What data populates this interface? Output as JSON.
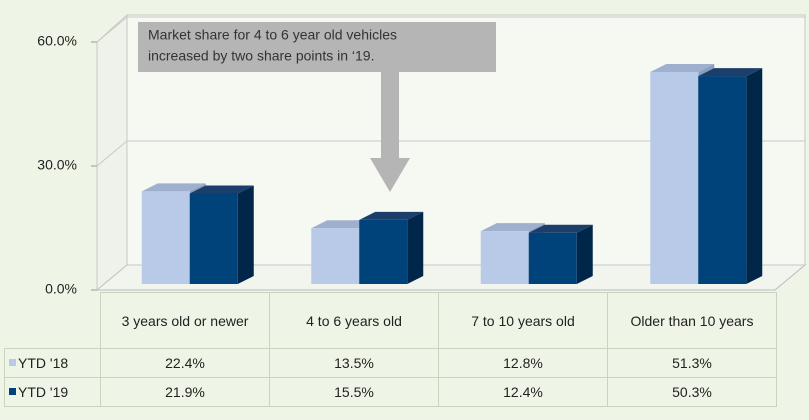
{
  "chart_data": {
    "type": "bar3d",
    "categories": [
      "3 years old or newer",
      "4 to 6 years old",
      "7 to 10 years old",
      "Older than 10 years"
    ],
    "series": [
      {
        "name": "YTD '18",
        "color": "#b9c9e8",
        "values": [
          22.4,
          13.5,
          12.8,
          51.3
        ],
        "value_labels": [
          "22.4%",
          "13.5%",
          "12.8%",
          "51.3%"
        ]
      },
      {
        "name": "YTD '19",
        "color": "#00427a",
        "values": [
          21.9,
          15.5,
          12.4,
          50.3
        ],
        "value_labels": [
          "21.9%",
          "15.5%",
          "12.4%",
          "50.3%"
        ]
      }
    ],
    "ylim": [
      0,
      60
    ],
    "yticks": [
      {
        "value": 0,
        "label": "0.0%"
      },
      {
        "value": 30,
        "label": "30.0%"
      },
      {
        "value": 60,
        "label": "60.0%"
      }
    ],
    "grid": true,
    "annotation": [
      "Market share for 4 to 6 year old vehicles",
      "increased by two share points in ‘19."
    ]
  }
}
